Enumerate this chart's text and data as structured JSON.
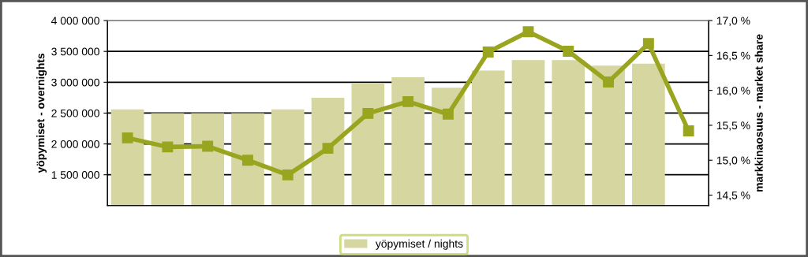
{
  "chart_data": {
    "type": "bar",
    "xlabel": null,
    "ylabel": "yöpymiset - overnights",
    "y2label": "markkinaosuus - market share",
    "categories": [
      null,
      null,
      null,
      null,
      null,
      null,
      null,
      null,
      null,
      null,
      null,
      null,
      null,
      null,
      null
    ],
    "series": [
      {
        "name": "yöpymiset / nights",
        "color": "#d5d6a0",
        "values": [
          2560000,
          2500000,
          2500000,
          2500000,
          2560000,
          2750000,
          2990000,
          3080000,
          2910000,
          3190000,
          3360000,
          3360000,
          3270000,
          3300000,
          null
        ]
      },
      {
        "type": "line",
        "axis": "y2",
        "color": "#9aa51f",
        "marker": "square",
        "line_style": "solid",
        "values": [
          15.32,
          15.19,
          15.2,
          15.0,
          14.79,
          15.17,
          15.67,
          15.84,
          15.66,
          16.55,
          16.84,
          16.56,
          16.12,
          16.67,
          15.42
        ]
      }
    ],
    "ylim": [
      1000000,
      4000000
    ],
    "yticks": [
      {
        "value": 1500000,
        "label": "1 500 000"
      },
      {
        "value": 2000000,
        "label": "2 000 000"
      },
      {
        "value": 2500000,
        "label": "2 500 000"
      },
      {
        "value": 3000000,
        "label": "3 000 000"
      },
      {
        "value": 3500000,
        "label": "3 500 000"
      },
      {
        "value": 4000000,
        "label": "4 000 000"
      }
    ],
    "y2lim": [
      14.35,
      17.0
    ],
    "y2ticks": [
      {
        "value": 14.5,
        "label": "14,5 %"
      },
      {
        "value": 15.0,
        "label": "15,0 %"
      },
      {
        "value": 15.5,
        "label": "15,5 %"
      },
      {
        "value": 16.0,
        "label": "16,0 %"
      },
      {
        "value": 16.5,
        "label": "16,5 %"
      },
      {
        "value": 17.0,
        "label": "17,0 %"
      }
    ],
    "grid": "y",
    "legend": "bottom"
  }
}
